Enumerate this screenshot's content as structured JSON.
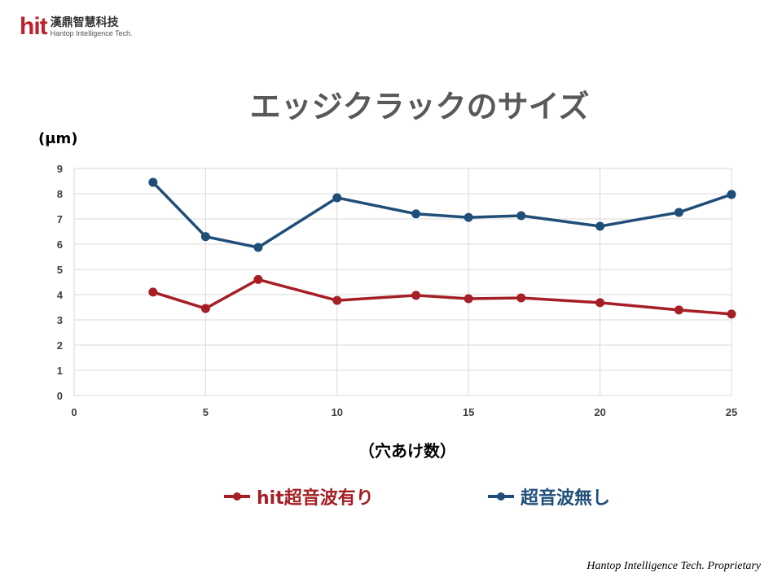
{
  "logo": {
    "mark": "hit",
    "cn": "漢鼎智慧科技",
    "en": "Hantop Intelligence Tech."
  },
  "footer": "Hantop Intelligence Tech. Proprietary",
  "chart_data": {
    "type": "line",
    "title": "エッジクラックのサイズ",
    "ylabel": "(μm)",
    "xlabel": "（穴あけ数）",
    "xlim": [
      0,
      25
    ],
    "ylim": [
      0,
      9
    ],
    "xticks": [
      0,
      5,
      10,
      15,
      20,
      25
    ],
    "yticks": [
      0,
      1,
      2,
      3,
      4,
      5,
      6,
      7,
      8,
      9
    ],
    "grid": true,
    "legend_position": "bottom",
    "x": [
      3,
      5,
      7,
      10,
      13,
      15,
      17,
      20,
      23,
      25
    ],
    "series": [
      {
        "name": "hit超音波有り",
        "color": "#a51f24",
        "values": [
          4.1,
          3.45,
          4.6,
          3.77,
          3.97,
          3.84,
          3.87,
          3.68,
          3.39,
          3.23
        ]
      },
      {
        "name": "超音波無し",
        "color": "#1f4e79",
        "values": [
          8.45,
          6.3,
          5.87,
          7.84,
          7.2,
          7.06,
          7.13,
          6.71,
          7.26,
          7.97
        ]
      }
    ]
  }
}
